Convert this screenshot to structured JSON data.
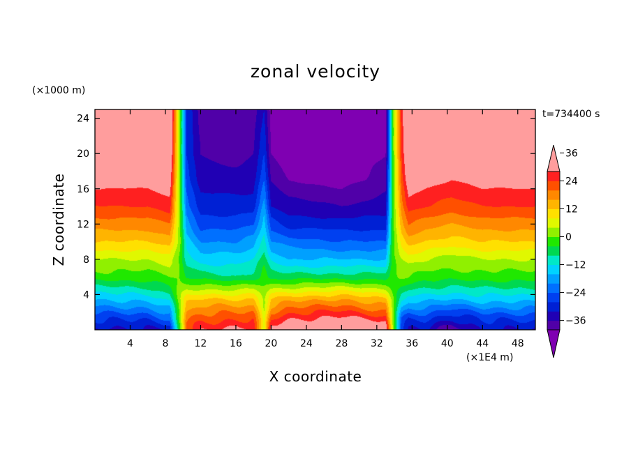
{
  "chart_data": {
    "type": "heatmap",
    "title": "zonal velocity",
    "xlabel": "X coordinate",
    "ylabel": "Z coordinate",
    "x_units": "(×1E4 m)",
    "y_units": "(×1000 m)",
    "time_label": "t=734400 s",
    "xlim": [
      0,
      50
    ],
    "ylim": [
      0,
      25
    ],
    "x_ticks": [
      4,
      8,
      12,
      16,
      20,
      24,
      28,
      32,
      36,
      40,
      44,
      48
    ],
    "y_ticks": [
      4,
      8,
      12,
      16,
      20,
      24
    ],
    "colorbar": {
      "min": -42,
      "max": 42,
      "step": 4,
      "tick_values": [
        36,
        24,
        12,
        0,
        -12,
        -24,
        -36
      ],
      "tick_labels": [
        "36",
        "24",
        "12",
        "0",
        "−12",
        "−24",
        "−36"
      ],
      "extend": "both",
      "colors": [
        "#7f00b2",
        "#5000a8",
        "#2000b4",
        "#0020d4",
        "#0040f0",
        "#0070ff",
        "#00a0ff",
        "#00d2ff",
        "#00e8c8",
        "#00d850",
        "#20e800",
        "#90f000",
        "#e0f800",
        "#ffe000",
        "#ffb400",
        "#ff8800",
        "#ff5000",
        "#ff2020",
        "#ff9d9d"
      ]
    },
    "field": {
      "x_knots": [
        0,
        6,
        8.5,
        9.6,
        10.4,
        12,
        16,
        18,
        19.2,
        20,
        22,
        28,
        33,
        33.8,
        34.8,
        35.6,
        37.5,
        40.5,
        44,
        50
      ],
      "z_knots": [
        0,
        1.5,
        3.5,
        6,
        8,
        10,
        12,
        14,
        17,
        20,
        25
      ],
      "values": [
        [
          -32,
          -30,
          -30,
          0,
          24,
          28,
          32,
          32,
          6,
          32,
          36,
          40,
          36,
          4,
          -26,
          -30,
          -30,
          -38,
          -30,
          -30
        ],
        [
          -24,
          -24,
          -20,
          4,
          20,
          24,
          24,
          24,
          6,
          24,
          28,
          30,
          26,
          4,
          -20,
          -24,
          -24,
          -28,
          -24,
          -24
        ],
        [
          -14,
          -12,
          -8,
          4,
          12,
          14,
          14,
          14,
          6,
          14,
          16,
          18,
          14,
          4,
          -8,
          -12,
          -12,
          -14,
          -12,
          -12
        ],
        [
          0,
          0,
          2,
          2,
          -2,
          -4,
          -6,
          -4,
          0,
          -4,
          -4,
          -4,
          -4,
          0,
          2,
          2,
          0,
          0,
          0,
          0
        ],
        [
          6,
          6,
          8,
          2,
          -8,
          -12,
          -12,
          -10,
          -4,
          -10,
          -14,
          -14,
          -14,
          0,
          6,
          8,
          6,
          4,
          6,
          6
        ],
        [
          14,
          14,
          16,
          4,
          -12,
          -18,
          -18,
          -16,
          -8,
          -18,
          -20,
          -22,
          -22,
          0,
          12,
          16,
          14,
          12,
          14,
          14
        ],
        [
          20,
          20,
          22,
          4,
          -16,
          -24,
          -24,
          -22,
          -12,
          -24,
          -28,
          -28,
          -28,
          0,
          16,
          22,
          20,
          18,
          20,
          20
        ],
        [
          26,
          26,
          28,
          4,
          -20,
          -28,
          -28,
          -28,
          -16,
          -30,
          -32,
          -34,
          -32,
          0,
          20,
          28,
          26,
          24,
          26,
          26
        ],
        [
          32,
          32,
          34,
          4,
          -24,
          -32,
          -32,
          -32,
          -22,
          -34,
          -38,
          -40,
          -36,
          0,
          24,
          34,
          32,
          30,
          32,
          32
        ],
        [
          38,
          38,
          38,
          4,
          -26,
          -34,
          -36,
          -34,
          -26,
          -38,
          -42,
          -42,
          -38,
          0,
          26,
          38,
          38,
          36,
          38,
          38
        ],
        [
          42,
          42,
          40,
          4,
          -26,
          -36,
          -38,
          -36,
          -30,
          -40,
          -44,
          -44,
          -40,
          0,
          28,
          40,
          44,
          44,
          44,
          44
        ]
      ]
    }
  }
}
